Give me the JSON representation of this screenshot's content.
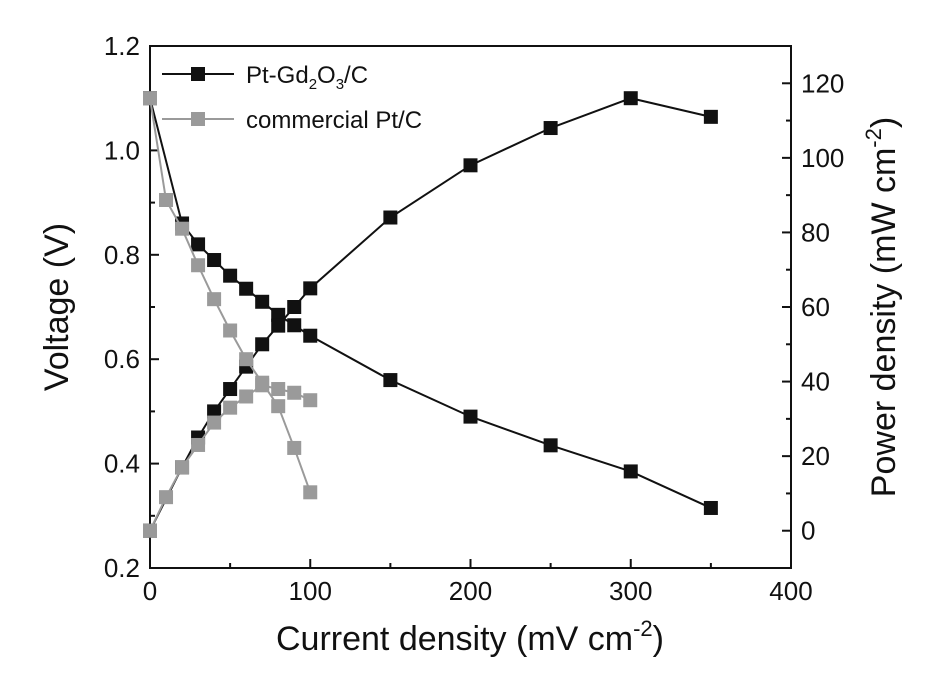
{
  "chart_data": {
    "type": "line",
    "title": "",
    "xlabel": "Current density (mV cm",
    "xlabel_sup": "-2",
    "xlabel_end": ")",
    "ylabel_left": "Voltage (V)",
    "ylabel_right": "Power density (mW cm",
    "ylabel_right_sup": "-2",
    "ylabel_right_end": ")",
    "xlim": [
      0,
      400
    ],
    "ylim_left": [
      0.2,
      1.2
    ],
    "ylim_right": [
      -10,
      130
    ],
    "x_ticks": [
      0,
      100,
      200,
      300,
      400
    ],
    "y_left_ticks": [
      0.2,
      0.4,
      0.6,
      0.8,
      1.0,
      1.2
    ],
    "y_right_ticks": [
      0,
      20,
      40,
      60,
      80,
      100,
      120
    ],
    "grid": false,
    "legend_position": "top-left",
    "legend": [
      {
        "pre": "Pt-Gd",
        "sub1": "2",
        "mid": "O",
        "sub2": "3",
        "post": "/C"
      },
      {
        "text": "commercial Pt/C"
      }
    ],
    "series": [
      {
        "name": "Pt-Gd2O3/C voltage",
        "axis": "left",
        "color": "#111111",
        "x": [
          0,
          20,
          30,
          40,
          50,
          60,
          70,
          80,
          90,
          100,
          150,
          200,
          250,
          300,
          350
        ],
        "y": [
          1.1,
          0.86,
          0.82,
          0.79,
          0.76,
          0.735,
          0.71,
          0.685,
          0.665,
          0.645,
          0.56,
          0.49,
          0.435,
          0.385,
          0.315
        ]
      },
      {
        "name": "Pt-Gd2O3/C power density",
        "axis": "right",
        "color": "#111111",
        "x": [
          0,
          20,
          30,
          40,
          50,
          60,
          70,
          80,
          90,
          100,
          150,
          200,
          250,
          300,
          350
        ],
        "y": [
          0,
          17,
          25,
          32,
          38,
          44,
          50,
          55,
          60,
          65,
          84,
          98,
          108,
          116,
          111
        ]
      },
      {
        "name": "commercial Pt/C voltage",
        "axis": "left",
        "color": "#9a9a9a",
        "x": [
          0,
          10,
          20,
          30,
          40,
          50,
          60,
          70,
          80,
          90,
          100
        ],
        "y": [
          1.1,
          0.905,
          0.85,
          0.78,
          0.715,
          0.655,
          0.6,
          0.555,
          0.51,
          0.43,
          0.345
        ]
      },
      {
        "name": "commercial Pt/C power density",
        "axis": "right",
        "color": "#9a9a9a",
        "x": [
          0,
          10,
          20,
          30,
          40,
          50,
          60,
          70,
          80,
          90,
          100
        ],
        "y": [
          0,
          9,
          17,
          23,
          29,
          33,
          36,
          39,
          38,
          37,
          35
        ]
      }
    ]
  }
}
